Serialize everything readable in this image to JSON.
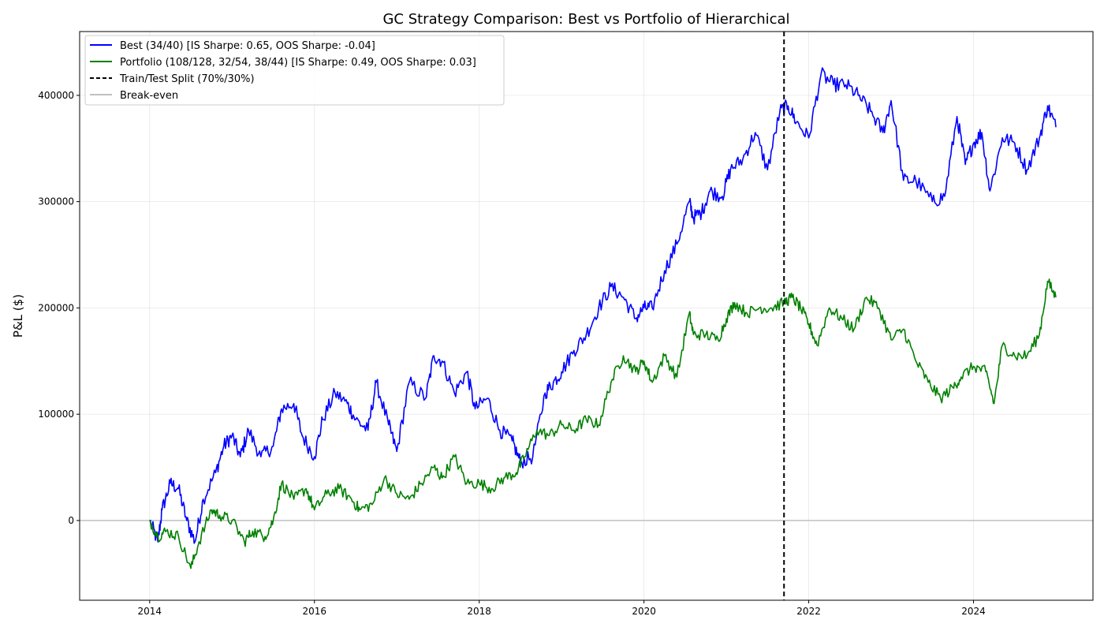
{
  "chart_data": {
    "type": "line",
    "title": "GC Strategy Comparison: Best vs Portfolio of Hierarchical",
    "xlabel": "",
    "ylabel": "P&L ($)",
    "xlim": [
      2013.15,
      2025.45
    ],
    "ylim": [
      -75000,
      460000
    ],
    "x_ticks": [
      2014,
      2016,
      2018,
      2020,
      2022,
      2024
    ],
    "x_tick_labels": [
      "2014",
      "2016",
      "2018",
      "2020",
      "2022",
      "2024"
    ],
    "y_ticks": [
      0,
      100000,
      200000,
      300000,
      400000
    ],
    "y_tick_labels": [
      "0",
      "100000",
      "200000",
      "300000",
      "400000"
    ],
    "grid": true,
    "legend_position": "top-left",
    "series": [
      {
        "name": "Best (34/40) [IS Sharpe: 0.65, OOS Sharpe: -0.04]",
        "color": "#0000ff",
        "x": [
          2014.0,
          2014.1,
          2014.15,
          2014.25,
          2014.35,
          2014.45,
          2014.55,
          2014.65,
          2014.8,
          2014.9,
          2015.0,
          2015.1,
          2015.2,
          2015.35,
          2015.5,
          2015.6,
          2015.75,
          2015.85,
          2016.0,
          2016.1,
          2016.25,
          2016.4,
          2016.5,
          2016.65,
          2016.75,
          2016.9,
          2017.0,
          2017.15,
          2017.35,
          2017.45,
          2017.55,
          2017.7,
          2017.85,
          2017.95,
          2018.1,
          2018.25,
          2018.4,
          2018.5,
          2018.65,
          2018.8,
          2018.9,
          2019.0,
          2019.15,
          2019.3,
          2019.45,
          2019.6,
          2019.75,
          2019.9,
          2020.0,
          2020.1,
          2020.25,
          2020.4,
          2020.55,
          2020.6,
          2020.7,
          2020.8,
          2020.95,
          2021.05,
          2021.2,
          2021.35,
          2021.5,
          2021.65,
          2021.75,
          2021.85,
          2022.0,
          2022.15,
          2022.3,
          2022.45,
          2022.6,
          2022.75,
          2022.9,
          2023.0,
          2023.15,
          2023.3,
          2023.5,
          2023.65,
          2023.8,
          2023.9,
          2024.0,
          2024.1,
          2024.2,
          2024.35,
          2024.5,
          2024.65,
          2024.8,
          2024.9,
          2025.0
        ],
        "y": [
          0,
          -20000,
          10000,
          35000,
          30000,
          0,
          -20000,
          20000,
          45000,
          70000,
          80000,
          60000,
          85000,
          60000,
          70000,
          105000,
          110000,
          80000,
          60000,
          95000,
          120000,
          110000,
          95000,
          85000,
          130000,
          90000,
          65000,
          130000,
          115000,
          155000,
          150000,
          120000,
          140000,
          105000,
          115000,
          85000,
          75000,
          55000,
          60000,
          120000,
          130000,
          140000,
          160000,
          175000,
          200000,
          220000,
          210000,
          190000,
          200000,
          200000,
          235000,
          260000,
          300000,
          285000,
          290000,
          310000,
          305000,
          330000,
          340000,
          365000,
          330000,
          385000,
          390000,
          375000,
          360000,
          420000,
          410000,
          410000,
          400000,
          385000,
          365000,
          395000,
          320000,
          320000,
          300000,
          305000,
          380000,
          335000,
          355000,
          365000,
          310000,
          360000,
          355000,
          330000,
          360000,
          390000,
          370000
        ]
      },
      {
        "name": "Portfolio (108/128, 32/54, 38/44) [IS Sharpe: 0.49, OOS Sharpe: 0.03]",
        "color": "#008000",
        "x": [
          2014.0,
          2014.1,
          2014.2,
          2014.35,
          2014.5,
          2014.6,
          2014.75,
          2014.85,
          2015.0,
          2015.15,
          2015.25,
          2015.4,
          2015.5,
          2015.6,
          2015.75,
          2015.9,
          2016.0,
          2016.15,
          2016.3,
          2016.45,
          2016.55,
          2016.7,
          2016.85,
          2017.0,
          2017.15,
          2017.3,
          2017.45,
          2017.55,
          2017.7,
          2017.85,
          2018.0,
          2018.15,
          2018.3,
          2018.45,
          2018.55,
          2018.7,
          2018.85,
          2019.0,
          2019.15,
          2019.3,
          2019.45,
          2019.6,
          2019.75,
          2019.9,
          2020.0,
          2020.1,
          2020.25,
          2020.4,
          2020.55,
          2020.6,
          2020.75,
          2020.9,
          2021.0,
          2021.1,
          2021.25,
          2021.4,
          2021.55,
          2021.7,
          2021.8,
          2021.9,
          2022.0,
          2022.1,
          2022.25,
          2022.4,
          2022.55,
          2022.7,
          2022.85,
          2023.0,
          2023.15,
          2023.3,
          2023.45,
          2023.6,
          2023.75,
          2023.85,
          2024.0,
          2024.15,
          2024.25,
          2024.35,
          2024.5,
          2024.65,
          2024.8,
          2024.9,
          2025.0
        ],
        "y": [
          0,
          -15000,
          -10000,
          -15000,
          -45000,
          -20000,
          10000,
          5000,
          0,
          -20000,
          -10000,
          -15000,
          0,
          35000,
          20000,
          30000,
          10000,
          25000,
          30000,
          20000,
          10000,
          15000,
          40000,
          25000,
          20000,
          35000,
          50000,
          40000,
          60000,
          35000,
          35000,
          30000,
          40000,
          45000,
          60000,
          85000,
          80000,
          90000,
          85000,
          95000,
          90000,
          130000,
          155000,
          140000,
          150000,
          130000,
          155000,
          135000,
          195000,
          175000,
          175000,
          170000,
          190000,
          205000,
          195000,
          200000,
          200000,
          205000,
          210000,
          200000,
          185000,
          165000,
          200000,
          190000,
          180000,
          210000,
          200000,
          170000,
          180000,
          150000,
          130000,
          115000,
          125000,
          135000,
          145000,
          140000,
          110000,
          165000,
          155000,
          155000,
          175000,
          225000,
          210000
        ]
      },
      {
        "name": "Train/Test Split (70%/30%)",
        "color": "#000000",
        "style": "dashed",
        "x_value": 2021.7
      },
      {
        "name": "Break-even",
        "color": "#c0c0c0",
        "style": "horizontal",
        "y_value": 0
      }
    ]
  }
}
